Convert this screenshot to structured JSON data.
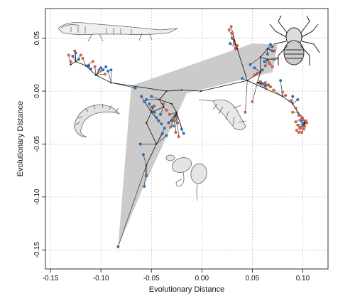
{
  "chart_data": {
    "type": "scatter",
    "xlabel": "Evolutionary Distance",
    "ylabel": "Evolutionary Distance",
    "xlim": [
      -0.155,
      0.125
    ],
    "ylim": [
      -0.168,
      0.078
    ],
    "x_ticks": [
      "-0.15",
      "-0.10",
      "-0.05",
      "0.00",
      "0.05",
      "0.10"
    ],
    "x_tick_values": [
      -0.15,
      -0.1,
      -0.05,
      0.0,
      0.05,
      0.1
    ],
    "y_ticks": [
      "0.05",
      "0.00",
      "-0.05",
      "-0.10",
      "-0.15"
    ],
    "y_tick_values": [
      0.05,
      0.0,
      -0.05,
      -0.1,
      -0.15
    ],
    "grid": true,
    "colors": {
      "tip_a": "#1f77d4",
      "tip_b": "#ff5a36",
      "branch": "#222222",
      "hull": "#c8c8c8",
      "grid": "#bbbbbb"
    },
    "icons": [
      "tetrapod-silhouette",
      "spider-silhouette",
      "millipede-silhouette",
      "trilobite-silhouette",
      "mushroom-silhouette"
    ],
    "hull": [
      [
        -0.083,
        -0.147
      ],
      [
        -0.07,
        0.005
      ],
      [
        0.05,
        0.045
      ],
      [
        0.075,
        0.044
      ],
      [
        0.07,
        0.018
      ],
      [
        -0.015,
        -0.002
      ],
      [
        -0.06,
        -0.095
      ]
    ],
    "nodes": [
      [
        -0.001,
        0.0
      ],
      [
        -0.02,
        0.001
      ],
      [
        -0.035,
        0.0
      ],
      [
        0.045,
        0.01
      ],
      [
        0.058,
        0.018
      ],
      [
        0.055,
        0.008
      ],
      [
        0.058,
        0.032
      ],
      [
        0.065,
        0.04
      ],
      [
        0.065,
        0.03
      ],
      [
        0.08,
        -0.005
      ],
      [
        -0.09,
        0.008
      ],
      [
        -0.105,
        0.015
      ],
      [
        -0.115,
        0.024
      ],
      [
        -0.125,
        0.028
      ],
      [
        -0.13,
        0.025
      ],
      [
        -0.042,
        -0.008
      ],
      [
        -0.038,
        -0.015
      ],
      [
        -0.05,
        -0.02
      ],
      [
        -0.03,
        -0.012
      ],
      [
        -0.025,
        -0.02
      ],
      [
        -0.055,
        -0.03
      ],
      [
        -0.045,
        -0.05
      ],
      [
        -0.055,
        -0.07
      ],
      [
        0.035,
        0.04
      ],
      [
        0.09,
        -0.012
      ],
      [
        0.095,
        -0.02
      ],
      [
        0.1,
        -0.025
      ],
      [
        0.102,
        -0.03
      ]
    ],
    "edges": [
      [
        0,
        1
      ],
      [
        1,
        2
      ],
      [
        0,
        3
      ],
      [
        3,
        4
      ],
      [
        4,
        5
      ],
      [
        4,
        6
      ],
      [
        6,
        7
      ],
      [
        6,
        8
      ],
      [
        3,
        9
      ],
      [
        2,
        10
      ],
      [
        10,
        11
      ],
      [
        11,
        12
      ],
      [
        12,
        13
      ],
      [
        13,
        14
      ],
      [
        2,
        15
      ],
      [
        15,
        16
      ],
      [
        16,
        17
      ],
      [
        15,
        18
      ],
      [
        18,
        19
      ],
      [
        17,
        20
      ],
      [
        20,
        21
      ],
      [
        21,
        22
      ],
      [
        3,
        23
      ],
      [
        9,
        24
      ],
      [
        24,
        25
      ],
      [
        25,
        26
      ],
      [
        26,
        27
      ]
    ],
    "series": [
      {
        "points": [
          [
            -0.125,
            0.036
          ],
          [
            -0.128,
            0.033
          ],
          [
            -0.122,
            0.03
          ],
          [
            -0.112,
            0.024
          ],
          [
            -0.11,
            0.021
          ],
          [
            -0.1,
            0.022
          ],
          [
            -0.098,
            0.02
          ],
          [
            -0.095,
            0.023
          ],
          [
            -0.093,
            0.019
          ],
          [
            -0.09,
            0.02
          ],
          [
            -0.066,
            0.003
          ],
          [
            -0.06,
            -0.005
          ],
          [
            -0.057,
            -0.01
          ],
          [
            -0.055,
            -0.008
          ],
          [
            -0.052,
            -0.012
          ],
          [
            -0.05,
            -0.005
          ],
          [
            -0.049,
            -0.015
          ],
          [
            -0.047,
            -0.02
          ],
          [
            -0.045,
            -0.025
          ],
          [
            -0.043,
            -0.028
          ],
          [
            -0.041,
            -0.022
          ],
          [
            -0.04,
            -0.031
          ],
          [
            -0.039,
            -0.04
          ],
          [
            -0.037,
            -0.035
          ],
          [
            -0.035,
            -0.042
          ],
          [
            -0.033,
            -0.03
          ],
          [
            -0.03,
            -0.028
          ],
          [
            -0.028,
            -0.033
          ],
          [
            -0.02,
            -0.036
          ],
          [
            -0.018,
            -0.04
          ],
          [
            -0.061,
            -0.05
          ],
          [
            -0.058,
            -0.06
          ],
          [
            -0.055,
            -0.08
          ],
          [
            -0.057,
            -0.09
          ],
          [
            -0.083,
            -0.147
          ],
          [
            0.03,
            0.05
          ],
          [
            0.028,
            0.045
          ],
          [
            0.04,
            0.012
          ],
          [
            0.048,
            0.025
          ],
          [
            0.052,
            0.022
          ],
          [
            0.06,
            0.02
          ],
          [
            0.062,
            0.028
          ],
          [
            0.065,
            0.035
          ],
          [
            0.07,
            0.042
          ],
          [
            0.068,
            0.044
          ],
          [
            0.07,
            0.038
          ],
          [
            0.072,
            0.03
          ],
          [
            0.078,
            0.01
          ],
          [
            0.06,
            0.007
          ],
          [
            0.063,
            0.005
          ],
          [
            0.09,
            -0.005
          ],
          [
            0.095,
            -0.008
          ],
          [
            0.098,
            -0.028
          ],
          [
            0.1,
            -0.03
          ]
        ]
      },
      {
        "points": [
          [
            -0.132,
            0.034
          ],
          [
            -0.126,
            0.038
          ],
          [
            -0.12,
            0.034
          ],
          [
            -0.118,
            0.031
          ],
          [
            -0.13,
            0.028
          ],
          [
            -0.108,
            0.028
          ],
          [
            -0.106,
            0.023
          ],
          [
            -0.102,
            0.02
          ],
          [
            -0.096,
            0.016
          ],
          [
            -0.038,
            -0.012
          ],
          [
            -0.035,
            -0.018
          ],
          [
            -0.032,
            -0.022
          ],
          [
            -0.031,
            -0.034
          ],
          [
            -0.027,
            -0.028
          ],
          [
            -0.026,
            -0.039
          ],
          [
            -0.024,
            -0.03
          ],
          [
            -0.047,
            -0.014
          ],
          [
            -0.023,
            -0.043
          ],
          [
            0.027,
            0.058
          ],
          [
            0.029,
            0.061
          ],
          [
            0.03,
            0.055
          ],
          [
            0.031,
            0.05
          ],
          [
            0.032,
            0.045
          ],
          [
            0.033,
            0.04
          ],
          [
            0.035,
            0.043
          ],
          [
            0.052,
            0.015
          ],
          [
            0.055,
            0.017
          ],
          [
            0.058,
            0.009
          ],
          [
            0.063,
            0.008
          ],
          [
            0.066,
            0.006
          ],
          [
            0.068,
            0.004
          ],
          [
            0.071,
            0.001
          ],
          [
            0.064,
            0.002
          ],
          [
            0.072,
            0.038
          ],
          [
            0.075,
            0.031
          ],
          [
            0.067,
            0.026
          ],
          [
            0.07,
            0.023
          ],
          [
            0.063,
            0.024
          ],
          [
            0.05,
            -0.01
          ],
          [
            0.043,
            -0.02
          ],
          [
            0.08,
            -0.001
          ],
          [
            0.083,
            -0.004
          ],
          [
            0.088,
            -0.009
          ],
          [
            0.093,
            -0.016
          ],
          [
            0.09,
            -0.02
          ],
          [
            0.096,
            -0.023
          ],
          [
            0.093,
            -0.029
          ],
          [
            0.095,
            -0.032
          ],
          [
            0.097,
            -0.034
          ],
          [
            0.094,
            -0.037
          ],
          [
            0.098,
            -0.035
          ],
          [
            0.099,
            -0.039
          ],
          [
            0.101,
            -0.036
          ],
          [
            0.102,
            -0.033
          ],
          [
            0.103,
            -0.028
          ],
          [
            0.104,
            -0.03
          ],
          [
            0.1,
            -0.027
          ],
          [
            0.096,
            -0.039
          ],
          [
            0.099,
            -0.025
          ]
        ]
      }
    ]
  }
}
